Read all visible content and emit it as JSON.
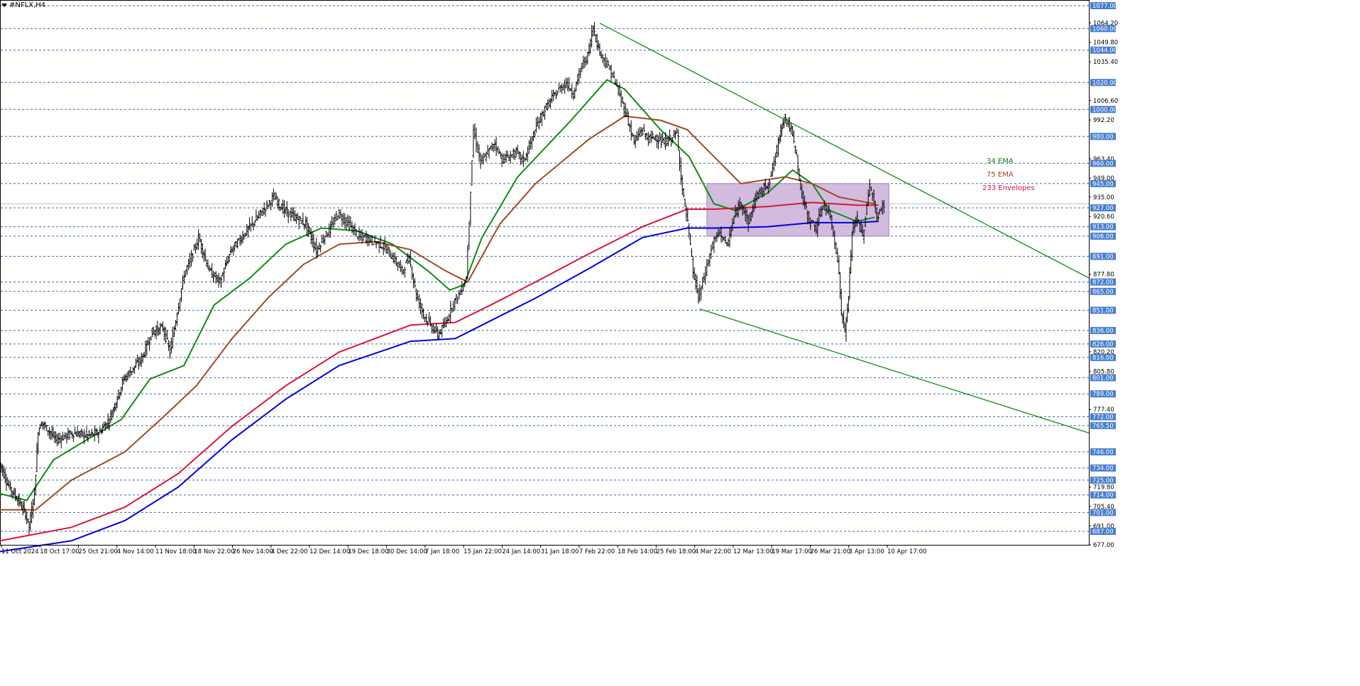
{
  "chart_title": "#NFLX,H4",
  "chart_data": {
    "type": "candlestick",
    "symbol": "#NFLX",
    "timeframe": "H4",
    "ylim": [
      677,
      1077
    ],
    "ruler_levels": [
      1077,
      1060,
      1044,
      1020,
      1000,
      980,
      960,
      945,
      927,
      913,
      906,
      891,
      872,
      865,
      851,
      836,
      826,
      816,
      801,
      789,
      772,
      765.5,
      746,
      734,
      725,
      714,
      701,
      687
    ],
    "ruler_labels": [
      "1077.00",
      "1060.00",
      "1044.00",
      "1020.00",
      "1000.00",
      "980.00",
      "960.00",
      "945.00",
      "927.00",
      "913.00",
      "906.00",
      "891.00",
      "872.00",
      "865.00",
      "851.00",
      "836.00",
      "826.00",
      "816.00",
      "801.00",
      "789.00",
      "772.00",
      "765.50",
      "746.00",
      "734.00",
      "725.00",
      "714.00",
      "701.00",
      "687.00"
    ],
    "price_scale": [
      "1064.20",
      "1049.80",
      "1035.40",
      "1006.60",
      "992.20",
      "963.40",
      "949.00",
      "935.00",
      "920.60",
      "877.80",
      "820.20",
      "805.80",
      "777.40",
      "719.80",
      "705.40",
      "691.00",
      "677.00"
    ],
    "current_price": 930,
    "x_labels": [
      "11 Oct 2024",
      "18 Oct 17:00",
      "25 Oct 21:00",
      "4 Nov 14:00",
      "11 Nov 18:00",
      "18 Nov 22:00",
      "26 Nov 14:00",
      "4 Dec 22:00",
      "12 Dec 14:00",
      "19 Dec 18:00",
      "30 Dec 14:00",
      "7 Jan 18:00",
      "15 Jan 22:00",
      "24 Jan 14:00",
      "31 Jan 18:00",
      "7 Feb 22:00",
      "18 Feb 14:00",
      "25 Feb 18:00",
      "4 Mar 22:00",
      "12 Mar 13:00",
      "19 Mar 17:00",
      "26 Mar 21:00",
      "3 Apr 13:00",
      "10 Apr 17:00"
    ],
    "price_path": [
      [
        0,
        740
      ],
      [
        5,
        722
      ],
      [
        10,
        712
      ],
      [
        15,
        700
      ],
      [
        17,
        690
      ],
      [
        20,
        716
      ],
      [
        22,
        762
      ],
      [
        24,
        768
      ],
      [
        32,
        755
      ],
      [
        42,
        760
      ],
      [
        50,
        758
      ],
      [
        56,
        760
      ],
      [
        62,
        770
      ],
      [
        70,
        800
      ],
      [
        80,
        815
      ],
      [
        86,
        835
      ],
      [
        92,
        838
      ],
      [
        96,
        820
      ],
      [
        100,
        850
      ],
      [
        104,
        878
      ],
      [
        108,
        890
      ],
      [
        112,
        905
      ],
      [
        118,
        880
      ],
      [
        124,
        872
      ],
      [
        130,
        895
      ],
      [
        136,
        905
      ],
      [
        142,
        915
      ],
      [
        148,
        925
      ],
      [
        154,
        935
      ],
      [
        160,
        925
      ],
      [
        166,
        920
      ],
      [
        172,
        915
      ],
      [
        178,
        895
      ],
      [
        182,
        905
      ],
      [
        186,
        912
      ],
      [
        190,
        923
      ],
      [
        194,
        918
      ],
      [
        198,
        912
      ],
      [
        202,
        905
      ],
      [
        206,
        905
      ],
      [
        210,
        902
      ],
      [
        214,
        900
      ],
      [
        218,
        895
      ],
      [
        222,
        888
      ],
      [
        226,
        880
      ],
      [
        230,
        890
      ],
      [
        234,
        862
      ],
      [
        238,
        848
      ],
      [
        242,
        840
      ],
      [
        246,
        833
      ],
      [
        250,
        840
      ],
      [
        254,
        855
      ],
      [
        258,
        863
      ],
      [
        262,
        875
      ],
      [
        266,
        985
      ],
      [
        270,
        960
      ],
      [
        274,
        968
      ],
      [
        278,
        975
      ],
      [
        282,
        963
      ],
      [
        286,
        965
      ],
      [
        290,
        968
      ],
      [
        294,
        962
      ],
      [
        298,
        975
      ],
      [
        302,
        990
      ],
      [
        306,
        1000
      ],
      [
        310,
        1008
      ],
      [
        314,
        1015
      ],
      [
        318,
        1020
      ],
      [
        322,
        1012
      ],
      [
        326,
        1030
      ],
      [
        330,
        1040
      ],
      [
        333,
        1062
      ],
      [
        336,
        1045
      ],
      [
        340,
        1035
      ],
      [
        344,
        1025
      ],
      [
        348,
        1010
      ],
      [
        352,
        995
      ],
      [
        356,
        975
      ],
      [
        360,
        985
      ],
      [
        364,
        978
      ],
      [
        368,
        980
      ],
      [
        372,
        975
      ],
      [
        376,
        978
      ],
      [
        380,
        982
      ],
      [
        383,
        940
      ],
      [
        386,
        915
      ],
      [
        389,
        880
      ],
      [
        392,
        860
      ],
      [
        396,
        880
      ],
      [
        400,
        900
      ],
      [
        404,
        910
      ],
      [
        408,
        898
      ],
      [
        412,
        920
      ],
      [
        416,
        932
      ],
      [
        420,
        915
      ],
      [
        424,
        935
      ],
      [
        428,
        940
      ],
      [
        432,
        948
      ],
      [
        436,
        970
      ],
      [
        438,
        985
      ],
      [
        440,
        995
      ],
      [
        444,
        985
      ],
      [
        447,
        965
      ],
      [
        450,
        935
      ],
      [
        454,
        918
      ],
      [
        458,
        912
      ],
      [
        462,
        930
      ],
      [
        466,
        920
      ],
      [
        470,
        890
      ],
      [
        472,
        850
      ],
      [
        474,
        835
      ],
      [
        476,
        860
      ],
      [
        478,
        910
      ],
      [
        481,
        920
      ],
      [
        484,
        905
      ],
      [
        488,
        945
      ],
      [
        492,
        920
      ],
      [
        496,
        930
      ]
    ],
    "series": [
      {
        "name": "34 EMA",
        "color": "#118a11",
        "values": [
          [
            0,
            715
          ],
          [
            15,
            710
          ],
          [
            30,
            740
          ],
          [
            50,
            756
          ],
          [
            68,
            770
          ],
          [
            84,
            800
          ],
          [
            103,
            810
          ],
          [
            120,
            855
          ],
          [
            140,
            875
          ],
          [
            160,
            900
          ],
          [
            180,
            912
          ],
          [
            200,
            910
          ],
          [
            220,
            900
          ],
          [
            240,
            880
          ],
          [
            252,
            866
          ],
          [
            260,
            870
          ],
          [
            270,
            905
          ],
          [
            290,
            950
          ],
          [
            310,
            978
          ],
          [
            320,
            992
          ],
          [
            340,
            1022
          ],
          [
            350,
            1015
          ],
          [
            370,
            985
          ],
          [
            386,
            965
          ],
          [
            400,
            930
          ],
          [
            412,
            925
          ],
          [
            430,
            938
          ],
          [
            444,
            955
          ],
          [
            455,
            945
          ],
          [
            465,
            925
          ],
          [
            480,
            917
          ],
          [
            490,
            920
          ]
        ]
      },
      {
        "name": "75 EMA",
        "color": "#a04a22",
        "values": [
          [
            0,
            703
          ],
          [
            20,
            703
          ],
          [
            40,
            725
          ],
          [
            70,
            746
          ],
          [
            90,
            770
          ],
          [
            110,
            795
          ],
          [
            130,
            830
          ],
          [
            150,
            860
          ],
          [
            170,
            885
          ],
          [
            190,
            900
          ],
          [
            210,
            902
          ],
          [
            230,
            896
          ],
          [
            250,
            880
          ],
          [
            262,
            872
          ],
          [
            280,
            915
          ],
          [
            300,
            945
          ],
          [
            330,
            978
          ],
          [
            350,
            995
          ],
          [
            370,
            992
          ],
          [
            385,
            985
          ],
          [
            400,
            965
          ],
          [
            415,
            945
          ],
          [
            440,
            950
          ],
          [
            455,
            945
          ],
          [
            470,
            935
          ],
          [
            490,
            930
          ]
        ]
      },
      {
        "name": "233 Envelopes",
        "color": "#dc143c",
        "values": [
          [
            0,
            680
          ],
          [
            40,
            690
          ],
          [
            70,
            705
          ],
          [
            100,
            730
          ],
          [
            130,
            765
          ],
          [
            160,
            795
          ],
          [
            190,
            820
          ],
          [
            230,
            840
          ],
          [
            255,
            842
          ],
          [
            275,
            855
          ],
          [
            300,
            872
          ],
          [
            330,
            893
          ],
          [
            360,
            913
          ],
          [
            385,
            926
          ],
          [
            400,
            926
          ],
          [
            430,
            928
          ],
          [
            455,
            931
          ],
          [
            480,
            929
          ],
          [
            492,
            929
          ]
        ]
      },
      {
        "name": "233 Envelopes (lower)",
        "color": "#0000dc",
        "values": [
          [
            0,
            672
          ],
          [
            40,
            680
          ],
          [
            70,
            695
          ],
          [
            100,
            720
          ],
          [
            130,
            755
          ],
          [
            160,
            785
          ],
          [
            190,
            810
          ],
          [
            230,
            828
          ],
          [
            255,
            830
          ],
          [
            270,
            840
          ],
          [
            300,
            860
          ],
          [
            330,
            882
          ],
          [
            360,
            905
          ],
          [
            385,
            912
          ],
          [
            400,
            912
          ],
          [
            430,
            913
          ],
          [
            455,
            916
          ],
          [
            480,
            916
          ],
          [
            492,
            917
          ]
        ]
      }
    ],
    "trendlines": [
      {
        "from": [
          336,
          1064
        ],
        "to": [
          610,
          875
        ],
        "color": "#118a11"
      },
      {
        "from": [
          392,
          852
        ],
        "to": [
          610,
          760
        ],
        "color": "#118a11"
      }
    ],
    "zone": {
      "x_from": 396,
      "x_to": 498,
      "y_from": 906,
      "y_to": 945,
      "color": "#cdb4dc"
    },
    "legend": [
      {
        "label": "34 EMA",
        "color": "#118a11"
      },
      {
        "label": "75 EMA",
        "color": "#a04a22"
      },
      {
        "label": "233 Envelopes",
        "color": "#dc143c"
      }
    ],
    "grid": true,
    "legend_position": "right"
  }
}
